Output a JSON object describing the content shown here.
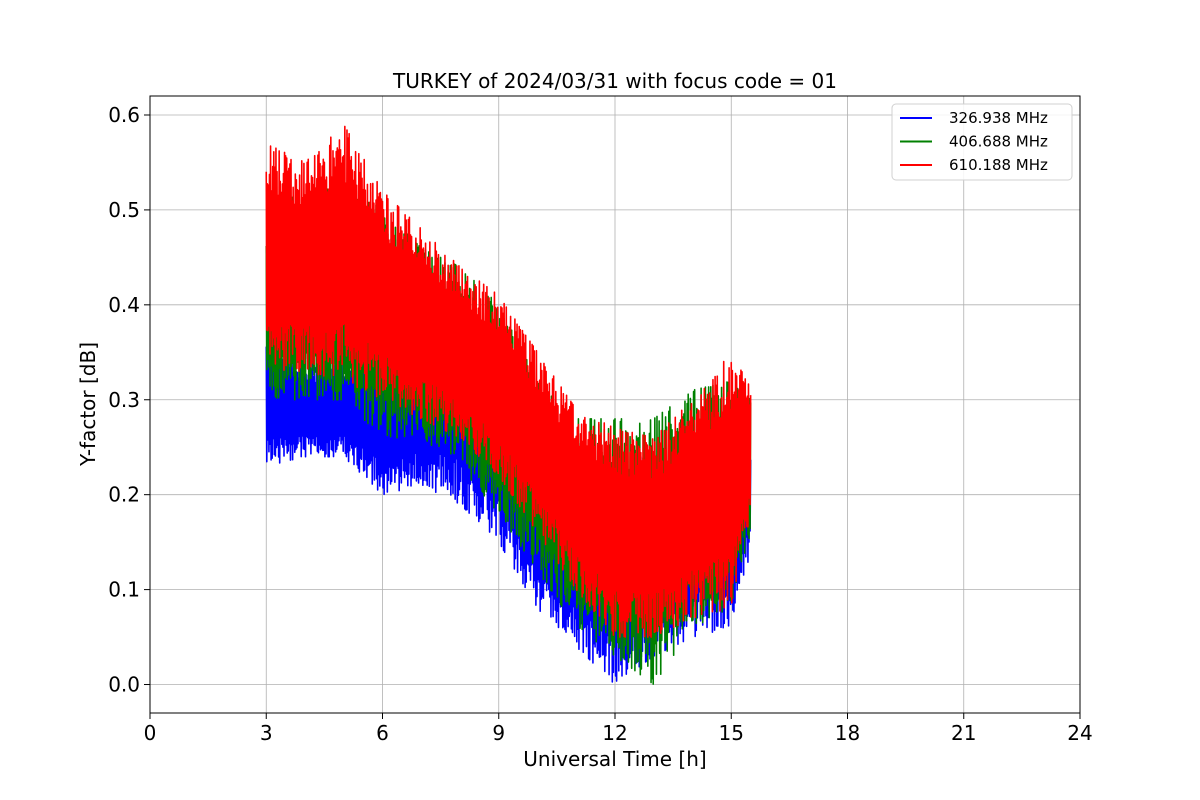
{
  "chart_data": {
    "type": "line",
    "title": "TURKEY of 2024/03/31 with focus code = 01",
    "xlabel": "Universal Time [h]",
    "ylabel": "Y-factor [dB]",
    "xlim": [
      0,
      24
    ],
    "ylim": [
      -0.03,
      0.62
    ],
    "xticks": [
      0,
      3,
      6,
      9,
      12,
      15,
      18,
      21,
      24
    ],
    "xtick_labels": [
      "0",
      "3",
      "6",
      "9",
      "12",
      "15",
      "18",
      "21",
      "24"
    ],
    "yticks": [
      0.0,
      0.1,
      0.2,
      0.3,
      0.4,
      0.5,
      0.6
    ],
    "ytick_labels": [
      "0.0",
      "0.1",
      "0.2",
      "0.3",
      "0.4",
      "0.5",
      "0.6"
    ],
    "grid": true,
    "legend_position": "top-right",
    "series": [
      {
        "name": "326.938 MHz",
        "color": "#0000ff",
        "x": [
          3,
          4,
          5,
          6,
          7,
          8,
          9,
          10,
          11,
          12,
          13,
          14,
          15,
          15.5
        ],
        "y_min": [
          0.23,
          0.24,
          0.24,
          0.2,
          0.21,
          0.19,
          0.15,
          0.08,
          0.04,
          0.0,
          0.03,
          0.05,
          0.06,
          0.14
        ],
        "y_max": [
          0.36,
          0.34,
          0.34,
          0.36,
          0.38,
          0.42,
          0.35,
          0.25,
          0.22,
          0.24,
          0.24,
          0.26,
          0.28,
          0.26
        ]
      },
      {
        "name": "406.688 MHz",
        "color": "#008000",
        "x": [
          3,
          4,
          5,
          6,
          7,
          8,
          9,
          10,
          11,
          12,
          13,
          14,
          15,
          15.5
        ],
        "y_min": [
          0.3,
          0.3,
          0.3,
          0.26,
          0.26,
          0.23,
          0.18,
          0.12,
          0.06,
          0.03,
          0.0,
          0.06,
          0.08,
          0.16
        ],
        "y_max": [
          0.5,
          0.52,
          0.53,
          0.5,
          0.46,
          0.44,
          0.4,
          0.32,
          0.28,
          0.28,
          0.28,
          0.31,
          0.32,
          0.3
        ]
      },
      {
        "name": "610.188 MHz",
        "color": "#ff0000",
        "x": [
          3,
          4,
          5,
          6,
          7,
          8,
          9,
          10,
          11,
          12,
          13,
          14,
          15,
          15.5
        ],
        "y_min": [
          0.33,
          0.33,
          0.32,
          0.3,
          0.28,
          0.26,
          0.22,
          0.16,
          0.1,
          0.05,
          0.05,
          0.07,
          0.08,
          0.18
        ],
        "y_max": [
          0.57,
          0.55,
          0.59,
          0.52,
          0.48,
          0.44,
          0.41,
          0.35,
          0.29,
          0.27,
          0.26,
          0.3,
          0.35,
          0.32
        ]
      }
    ]
  }
}
